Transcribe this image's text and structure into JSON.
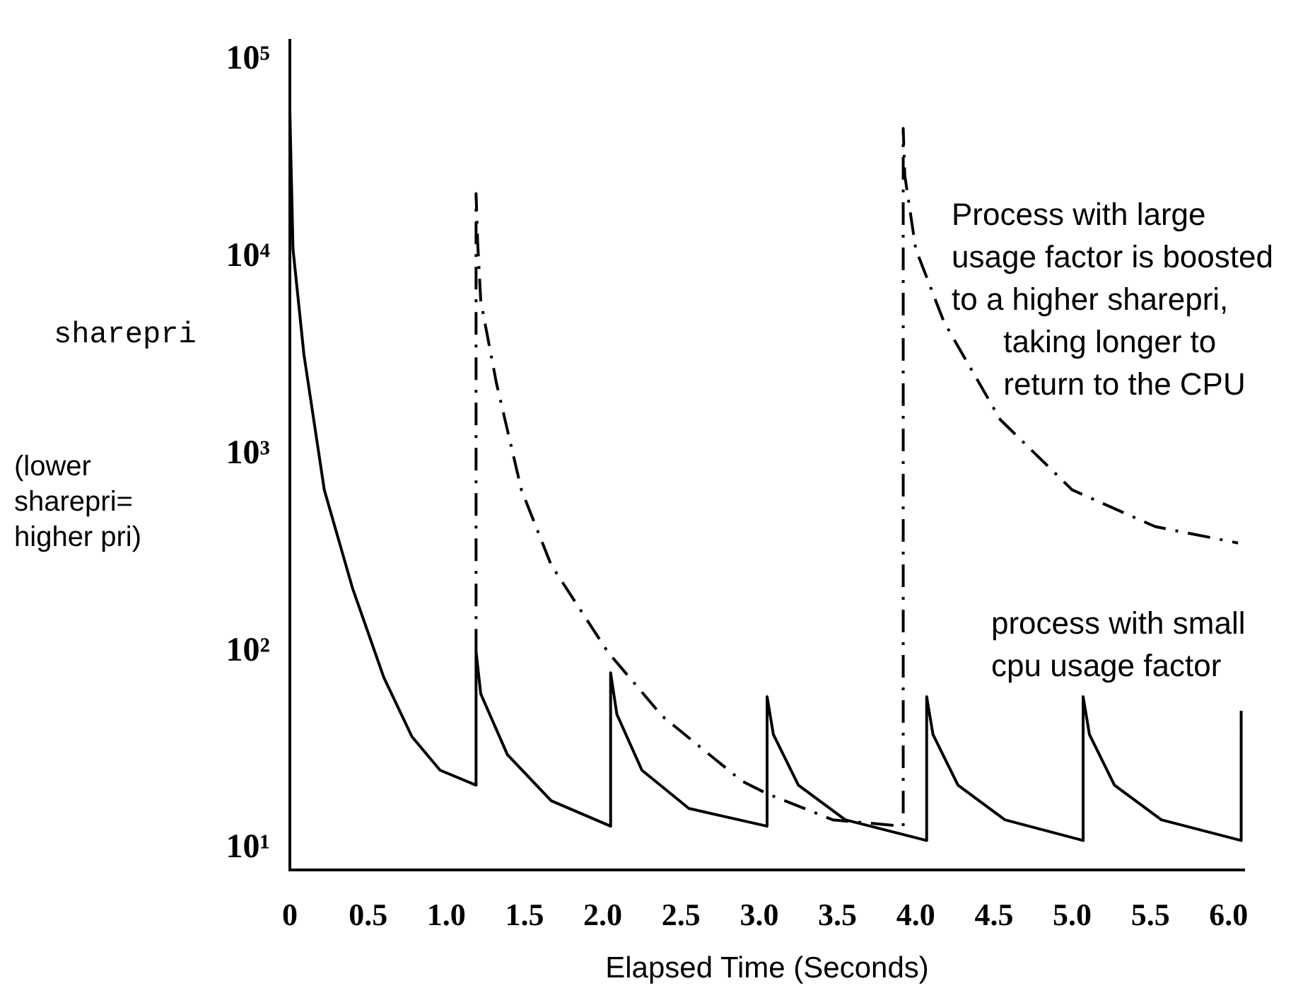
{
  "chart_data": {
    "type": "line",
    "xlabel": "Elapsed Time (Seconds)",
    "ylabel": "sharepri",
    "log": "y",
    "grid": false,
    "legend": false,
    "marker": "none",
    "xlim": [
      0,
      6.1
    ],
    "xticks": [
      0,
      0.5,
      {
        "value": 1,
        "label": "1.0"
      },
      1.5,
      {
        "value": 2,
        "label": "2.0"
      },
      2.5,
      {
        "value": 3,
        "label": "3.0"
      },
      3.5,
      {
        "value": 4,
        "label": "4.0"
      },
      4.5,
      {
        "value": 5,
        "label": "5.0"
      },
      5.5,
      {
        "value": 6,
        "label": "6.0"
      }
    ],
    "ylim": [
      7.8,
      126000
    ],
    "yticks": [
      {
        "value": 10,
        "label": "10¹"
      },
      {
        "value": 100,
        "label": "10²"
      },
      {
        "value": 1000,
        "label": "10³"
      },
      {
        "value": 10000,
        "label": "10⁴"
      },
      {
        "value": 100000,
        "label": "10⁵"
      }
    ],
    "series": [
      {
        "color": "#000000",
        "line_style": "solid",
        "x": [
          0,
          0.02,
          0.09,
          0.22,
          0.4,
          0.6,
          0.78,
          0.96,
          1.19,
          1.19,
          1.22,
          1.39,
          1.67,
          2.05,
          2.05,
          2.09,
          2.25,
          2.55,
          3.05,
          3.05,
          3.09,
          3.25,
          3.55,
          4.07,
          4.07,
          4.11,
          4.27,
          4.57,
          5.07,
          5.07,
          5.11,
          5.27,
          5.57,
          6.08,
          6.08
        ],
        "values": [
          55000,
          11000,
          3200,
          660,
          210,
          74,
          37,
          25,
          21,
          100,
          61,
          30,
          17.5,
          13,
          78,
          48,
          25,
          16,
          13,
          59,
          38,
          21,
          14,
          11,
          59,
          38,
          21,
          14,
          11,
          59,
          38,
          21,
          14,
          11,
          50
        ]
      },
      {
        "color": "#000000",
        "line_style": "dashed",
        "x": [
          1.19,
          1.19,
          1.2,
          1.22,
          1.32,
          1.48,
          1.67,
          2.03,
          2.38,
          2.89,
          3.05,
          3.47,
          3.92,
          3.92,
          3.93,
          4.0,
          4.18,
          4.54,
          5.0,
          5.53,
          6.06
        ],
        "values": [
          100,
          21000,
          12000,
          6000,
          2300,
          660,
          275,
          100,
          47,
          22,
          19,
          14,
          13,
          45000,
          26000,
          11000,
          4700,
          1500,
          660,
          430,
          355
        ]
      }
    ],
    "annotations": [
      "Process with large\nusage factor is boosted\nto a higher sharepri,\n      taking longer to\n      return to the CPU",
      "process with small\ncpu usage factor",
      "(lower\nsharepri=\nhigher pri)"
    ]
  }
}
